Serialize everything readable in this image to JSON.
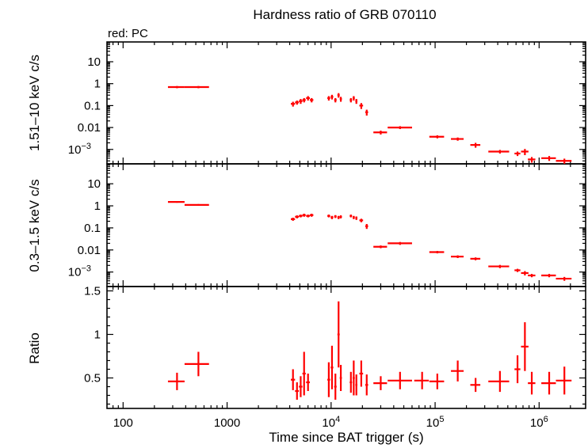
{
  "title": "Hardness ratio of GRB 070110",
  "legend_label": "red: PC",
  "series_color": "#ff0000",
  "chart_data": [
    {
      "type": "scatter",
      "panel": "top",
      "ylabel": "1.51–10 keV c/s",
      "yscale": "log",
      "ylim": [
        0.00022,
        80
      ],
      "yticks": [
        {
          "v": 10,
          "label": "10"
        },
        {
          "v": 1,
          "label": "1"
        },
        {
          "v": 0.1,
          "label": "0.1"
        },
        {
          "v": 0.01,
          "label": "0.01"
        },
        {
          "v": 0.001,
          "label": "10",
          "sup": "−3"
        }
      ],
      "x": [
        330,
        530,
        4300,
        4700,
        5100,
        5500,
        6000,
        6500,
        9500,
        10200,
        11000,
        11800,
        12400,
        15500,
        16500,
        17500,
        19500,
        22000,
        30000,
        46000,
        105000,
        165000,
        245000,
        420000,
        620000,
        730000,
        850000,
        1250000,
        1750000
      ],
      "xerr_lo": [
        60,
        140,
        200,
        200,
        200,
        200,
        250,
        250,
        300,
        300,
        300,
        300,
        300,
        400,
        400,
        400,
        800,
        700,
        4500,
        11000,
        17000,
        23000,
        27000,
        95000,
        40000,
        60000,
        70000,
        200000,
        300000
      ],
      "xerr_hi": [
        60,
        140,
        200,
        200,
        200,
        200,
        250,
        250,
        300,
        300,
        300,
        300,
        300,
        400,
        400,
        400,
        800,
        700,
        4500,
        14000,
        17000,
        23000,
        27000,
        95000,
        40000,
        60000,
        70000,
        200000,
        300000
      ],
      "y": [
        0.7,
        0.7,
        0.12,
        0.14,
        0.16,
        0.18,
        0.22,
        0.18,
        0.22,
        0.25,
        0.18,
        0.3,
        0.2,
        0.18,
        0.22,
        0.16,
        0.1,
        0.05,
        0.006,
        0.01,
        0.0038,
        0.003,
        0.0016,
        0.0008,
        0.00065,
        0.0008,
        0.00035,
        0.0004,
        0.0003
      ],
      "yerr": [
        0.08,
        0.08,
        0.03,
        0.03,
        0.04,
        0.04,
        0.05,
        0.04,
        0.05,
        0.06,
        0.04,
        0.07,
        0.05,
        0.04,
        0.05,
        0.04,
        0.03,
        0.015,
        0.0012,
        0.0015,
        0.0006,
        0.0005,
        0.0004,
        0.00015,
        0.00015,
        0.00025,
        0.0001,
        0.0001,
        8e-05
      ]
    },
    {
      "type": "scatter",
      "panel": "middle",
      "ylabel": "0.3–1.5 keV c/s",
      "yscale": "log",
      "ylim": [
        0.00022,
        80
      ],
      "yticks": [
        {
          "v": 10,
          "label": "10"
        },
        {
          "v": 1,
          "label": "1"
        },
        {
          "v": 0.1,
          "label": "0.1"
        },
        {
          "v": 0.01,
          "label": "0.01"
        },
        {
          "v": 0.001,
          "label": "10",
          "sup": "−3"
        }
      ],
      "x": [
        330,
        530,
        4300,
        4700,
        5100,
        5500,
        6000,
        6500,
        9500,
        10200,
        11000,
        11800,
        12400,
        15500,
        16500,
        17500,
        19500,
        22000,
        30000,
        46000,
        105000,
        165000,
        245000,
        420000,
        620000,
        730000,
        850000,
        1250000,
        1750000
      ],
      "xerr_lo": [
        60,
        140,
        200,
        200,
        200,
        200,
        250,
        250,
        300,
        300,
        300,
        300,
        300,
        400,
        400,
        400,
        800,
        700,
        4500,
        11000,
        17000,
        23000,
        27000,
        95000,
        40000,
        60000,
        70000,
        200000,
        300000
      ],
      "xerr_hi": [
        60,
        140,
        200,
        200,
        200,
        200,
        250,
        250,
        300,
        300,
        300,
        300,
        300,
        400,
        400,
        400,
        800,
        700,
        4500,
        14000,
        17000,
        23000,
        27000,
        95000,
        40000,
        60000,
        70000,
        200000,
        300000
      ],
      "y": [
        1.5,
        1.1,
        0.25,
        0.32,
        0.35,
        0.38,
        0.35,
        0.38,
        0.35,
        0.3,
        0.33,
        0.3,
        0.32,
        0.35,
        0.3,
        0.28,
        0.22,
        0.12,
        0.014,
        0.02,
        0.008,
        0.005,
        0.004,
        0.0018,
        0.0012,
        0.0009,
        0.0007,
        0.0007,
        0.0005
      ],
      "yerr": [
        0.12,
        0.1,
        0.04,
        0.05,
        0.05,
        0.06,
        0.05,
        0.06,
        0.05,
        0.05,
        0.05,
        0.05,
        0.05,
        0.05,
        0.05,
        0.05,
        0.04,
        0.03,
        0.002,
        0.003,
        0.001,
        0.0007,
        0.0006,
        0.0003,
        0.0002,
        0.0002,
        0.00012,
        0.00012,
        0.0001
      ]
    },
    {
      "type": "scatter",
      "panel": "bottom",
      "ylabel": "Ratio",
      "yscale": "linear",
      "ylim": [
        0.15,
        1.55
      ],
      "yticks": [
        {
          "v": 1.5,
          "label": "1.5"
        },
        {
          "v": 1,
          "label": "1"
        },
        {
          "v": 0.5,
          "label": "0.5"
        }
      ],
      "xlabel": "Time since BAT trigger (s)",
      "xscale": "log",
      "xlim": [
        70,
        2800000
      ],
      "xticks": [
        {
          "v": 100,
          "label": "100"
        },
        {
          "v": 1000,
          "label": "1000"
        },
        {
          "v": 10000,
          "label": "10",
          "sup": "4"
        },
        {
          "v": 100000,
          "label": "10",
          "sup": "5"
        },
        {
          "v": 1000000,
          "label": "10",
          "sup": "6"
        }
      ],
      "x": [
        330,
        530,
        4300,
        4700,
        5100,
        5500,
        6000,
        9500,
        10200,
        11000,
        11800,
        12400,
        15500,
        16500,
        17500,
        19500,
        22000,
        30000,
        46000,
        75000,
        105000,
        165000,
        245000,
        420000,
        620000,
        730000,
        850000,
        1250000,
        1750000
      ],
      "xerr_lo": [
        60,
        140,
        200,
        200,
        200,
        200,
        250,
        300,
        300,
        300,
        300,
        300,
        400,
        400,
        400,
        800,
        700,
        4500,
        11000,
        12000,
        17000,
        23000,
        27000,
        95000,
        40000,
        60000,
        70000,
        200000,
        300000
      ],
      "xerr_hi": [
        60,
        140,
        200,
        200,
        200,
        200,
        250,
        300,
        300,
        300,
        300,
        300,
        400,
        400,
        400,
        800,
        700,
        4500,
        14000,
        12000,
        17000,
        23000,
        27000,
        95000,
        40000,
        60000,
        70000,
        200000,
        300000
      ],
      "y": [
        0.46,
        0.66,
        0.48,
        0.35,
        0.4,
        0.55,
        0.45,
        0.48,
        0.62,
        0.4,
        1.0,
        0.5,
        0.45,
        0.5,
        0.42,
        0.55,
        0.42,
        0.44,
        0.47,
        0.47,
        0.46,
        0.58,
        0.42,
        0.46,
        0.6,
        0.86,
        0.44,
        0.44,
        0.47
      ],
      "yerr": [
        0.1,
        0.14,
        0.12,
        0.1,
        0.12,
        0.25,
        0.1,
        0.2,
        0.25,
        0.15,
        0.38,
        0.15,
        0.12,
        0.2,
        0.12,
        0.15,
        0.12,
        0.08,
        0.1,
        0.1,
        0.09,
        0.12,
        0.08,
        0.12,
        0.16,
        0.28,
        0.13,
        0.13,
        0.16
      ]
    }
  ]
}
